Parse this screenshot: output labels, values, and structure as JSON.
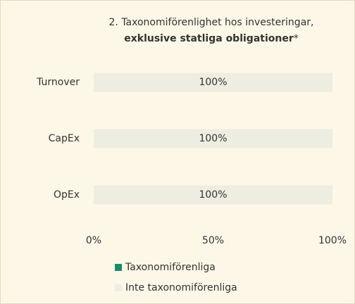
{
  "chart_data": {
    "type": "stacked_barh",
    "title": {
      "line1": "2. Taxonomiförenlighet hos investeringar,",
      "bold": "exklusive statliga obligationer",
      "suffix": "*"
    },
    "categories": [
      "Turnover",
      "CapEx",
      "OpEx"
    ],
    "series": [
      {
        "name": "Taxonomiförenliga",
        "color": "#1b8a6b",
        "values": [
          0,
          0,
          0
        ]
      },
      {
        "name": "Inte taxonomiförenliga",
        "color": "#eeede1",
        "values": [
          100,
          100,
          100
        ],
        "value_labels": [
          "100%",
          "100%",
          "100%"
        ]
      }
    ],
    "xlim": [
      0,
      100
    ],
    "xticks": [
      {
        "value": 0,
        "label": "0%"
      },
      {
        "value": 50,
        "label": "50%"
      },
      {
        "value": 100,
        "label": "100%"
      }
    ],
    "legend": "bottom"
  }
}
